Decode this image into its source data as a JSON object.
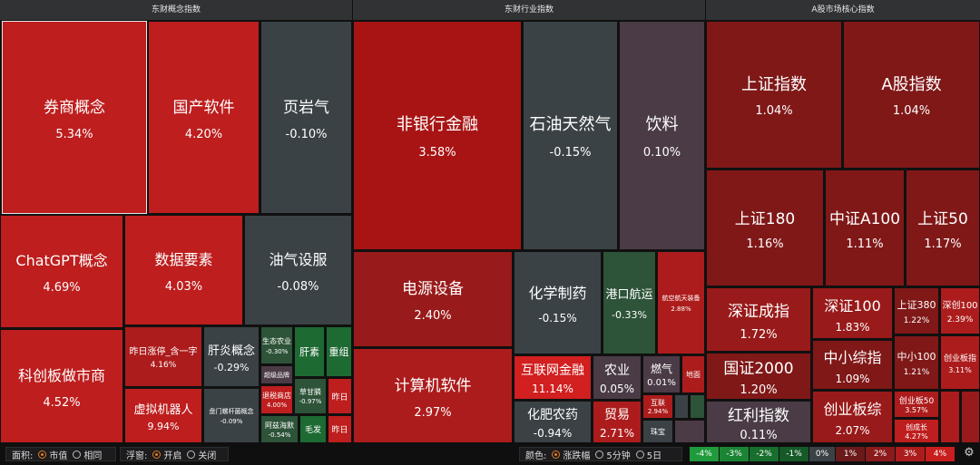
{
  "panels": {
    "concept": {
      "title": "东财概念指数",
      "cells": [
        {
          "name": "券商概念",
          "pct": "5.34%"
        },
        {
          "name": "国产软件",
          "pct": "4.20%"
        },
        {
          "name": "页岩气",
          "pct": "-0.10%"
        },
        {
          "name": "ChatGPT概念",
          "pct": "4.69%"
        },
        {
          "name": "数据要素",
          "pct": "4.03%"
        },
        {
          "name": "油气设服",
          "pct": "-0.08%"
        },
        {
          "name": "科创板做市商",
          "pct": "4.52%"
        },
        {
          "name": "昨日涨停_含一字",
          "pct": "4.16%"
        },
        {
          "name": "肝炎概念",
          "pct": "-0.29%"
        },
        {
          "name": "虚拟机器人",
          "pct": "9.94%"
        },
        {
          "name": "生态农业",
          "pct": "-0.30%"
        },
        {
          "name": "肝素",
          "pct": ""
        },
        {
          "name": "重组",
          "pct": ""
        },
        {
          "name": "超级品牌",
          "pct": "0.25%"
        },
        {
          "name": "退税商店",
          "pct": "4.00%"
        },
        {
          "name": "草甘膦",
          "pct": "-0.97%"
        },
        {
          "name": "昨日",
          "pct": ""
        },
        {
          "name": "养老金",
          "pct": "0.63%"
        },
        {
          "name": "阿兹海默",
          "pct": "-0.54%"
        },
        {
          "name": "毛发",
          "pct": ""
        },
        {
          "name": "昨日",
          "pct": ""
        },
        {
          "name": "盘门螺杆菌概念",
          "pct": "-0.09%"
        }
      ]
    },
    "industry": {
      "title": "东财行业指数",
      "cells": [
        {
          "name": "非银行金融",
          "pct": "3.58%"
        },
        {
          "name": "石油天然气",
          "pct": "-0.15%"
        },
        {
          "name": "饮料",
          "pct": "0.10%"
        },
        {
          "name": "电源设备",
          "pct": "2.40%"
        },
        {
          "name": "化学制药",
          "pct": "-0.15%"
        },
        {
          "name": "港口航运",
          "pct": "-0.33%"
        },
        {
          "name": "航空航天装备",
          "pct": "2.88%"
        },
        {
          "name": "计算机软件",
          "pct": "2.97%"
        },
        {
          "name": "互联网金融",
          "pct": "11.14%"
        },
        {
          "name": "农业",
          "pct": "0.05%"
        },
        {
          "name": "燃气",
          "pct": "0.01%"
        },
        {
          "name": "地面",
          "pct": ""
        },
        {
          "name": "化肥农药",
          "pct": "-0.94%"
        },
        {
          "name": "贸易",
          "pct": "2.71%"
        },
        {
          "name": "互联",
          "pct": "2.94%"
        },
        {
          "name": "珠宝",
          "pct": ""
        }
      ]
    },
    "core": {
      "title": "A股市场核心指数",
      "cells": [
        {
          "name": "上证指数",
          "pct": "1.04%"
        },
        {
          "name": "A股指数",
          "pct": "1.04%"
        },
        {
          "name": "上证180",
          "pct": "1.16%"
        },
        {
          "name": "中证A100",
          "pct": "1.11%"
        },
        {
          "name": "上证50",
          "pct": "1.17%"
        },
        {
          "name": "深证成指",
          "pct": "1.72%"
        },
        {
          "name": "深证100",
          "pct": "1.83%"
        },
        {
          "name": "上证380",
          "pct": "1.22%"
        },
        {
          "name": "深创100",
          "pct": "2.39%"
        },
        {
          "name": "中小综指",
          "pct": "1.09%"
        },
        {
          "name": "中小100",
          "pct": "1.21%"
        },
        {
          "name": "创业板指",
          "pct": "3.11%"
        },
        {
          "name": "国证2000",
          "pct": "1.20%"
        },
        {
          "name": "创业板综",
          "pct": "2.07%"
        },
        {
          "name": "创业板50",
          "pct": "3.57%"
        },
        {
          "name": "创成长",
          "pct": "4.27%"
        },
        {
          "name": "红利指数",
          "pct": "0.11%"
        }
      ]
    }
  },
  "bottom": {
    "area_label": "面积:",
    "area_options": [
      "市值",
      "相同"
    ],
    "float_label": "浮窗:",
    "float_options": [
      "开启",
      "关闭"
    ],
    "color_label": "颜色:",
    "color_options": [
      "涨跌幅",
      "5分钟",
      "5日"
    ],
    "legend": [
      "-4%",
      "-3%",
      "-2%",
      "-1%",
      "0%",
      "1%",
      "2%",
      "3%",
      "4%"
    ],
    "legend_colors": [
      "#1f9a3c",
      "#1b8434",
      "#186e2d",
      "#155a27",
      "#3a4246",
      "#6a1a1a",
      "#8b1a1a",
      "#ad1c1c",
      "#c81e1e"
    ]
  }
}
